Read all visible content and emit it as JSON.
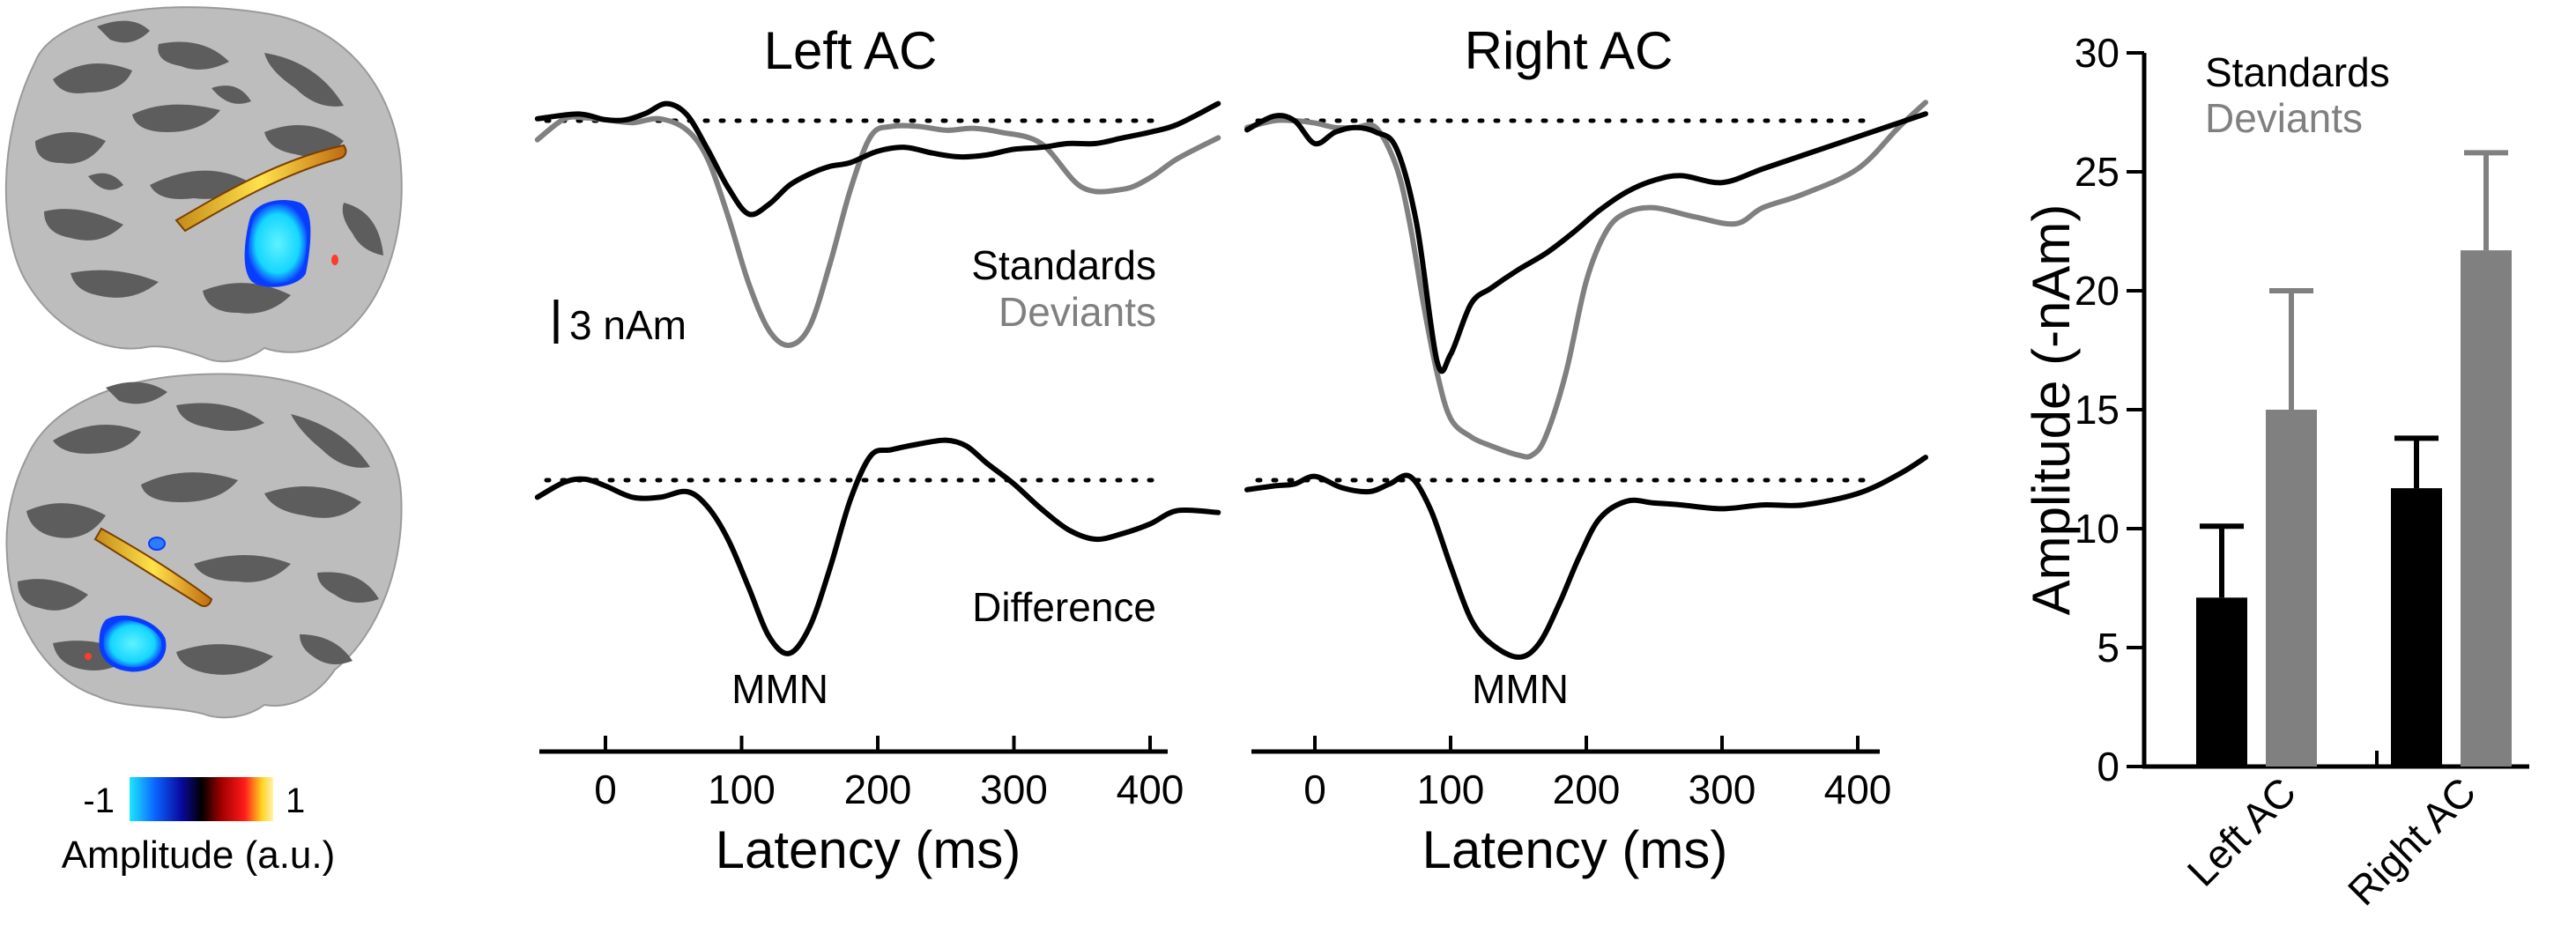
{
  "colors": {
    "standards": "#000000",
    "deviants": "#808080",
    "brain_dark": "#5d5d5d",
    "brain_light": "#bdbdbd",
    "colorbar": [
      "#1fe7ff",
      "#0a62ff",
      "#0a0aa0",
      "#000000",
      "#a00000",
      "#ff1a1a",
      "#ffd21f",
      "#fff3b0"
    ]
  },
  "brain_panel": {
    "views": [
      "left-hemisphere",
      "right-hemisphere"
    ],
    "colorbar": {
      "min_label": "-1",
      "max_label": "1",
      "caption": "Amplitude (a.u.)"
    }
  },
  "chart_data": [
    {
      "type": "line",
      "title": "Left AC",
      "xlabel": "Latency (ms)",
      "xlim": [
        -50,
        450
      ],
      "xticks": [
        0,
        100,
        200,
        300,
        400
      ],
      "legend": [
        "Standards",
        "Deviants"
      ],
      "scale_bar_label": "3 nAm",
      "difference_label": "Difference",
      "peak_annotation": "MMN",
      "series": [
        {
          "name": "Standards",
          "x": [
            -50,
            -20,
            0,
            15,
            30,
            45,
            60,
            75,
            90,
            105,
            120,
            135,
            150,
            165,
            180,
            200,
            220,
            240,
            260,
            280,
            300,
            320,
            340,
            360,
            380,
            400,
            420,
            450
          ],
          "y": [
            0.1,
            0.35,
            0.05,
            0.05,
            0.4,
            0.9,
            0.3,
            -1.5,
            -3.5,
            -4.9,
            -4.4,
            -3.4,
            -2.8,
            -2.4,
            -2.2,
            -1.6,
            -1.4,
            -1.7,
            -1.9,
            -1.8,
            -1.5,
            -1.4,
            -1.2,
            -1.2,
            -0.9,
            -0.6,
            -0.2,
            0.9
          ]
        },
        {
          "name": "Deviants",
          "x": [
            -50,
            -30,
            -15,
            0,
            20,
            40,
            60,
            75,
            90,
            105,
            120,
            135,
            150,
            165,
            180,
            195,
            210,
            230,
            250,
            270,
            290,
            320,
            350,
            380,
            400,
            420,
            450
          ],
          "y": [
            -1.0,
            0.1,
            0.15,
            0.05,
            -0.1,
            0.1,
            -0.5,
            -2.0,
            -5.0,
            -8.5,
            -11.0,
            -11.8,
            -10.8,
            -7.5,
            -3.6,
            -0.8,
            -0.3,
            -0.3,
            -0.5,
            -0.4,
            -0.6,
            -1.2,
            -3.5,
            -3.6,
            -3.0,
            -2.0,
            -0.9
          ]
        },
        {
          "name": "Difference",
          "x": [
            -50,
            -30,
            -15,
            0,
            20,
            40,
            60,
            75,
            90,
            105,
            120,
            135,
            150,
            165,
            180,
            195,
            210,
            230,
            250,
            265,
            280,
            300,
            320,
            340,
            360,
            380,
            400,
            420,
            450
          ],
          "y": [
            -0.9,
            -0.1,
            0.05,
            -0.3,
            -0.9,
            -0.9,
            -0.6,
            -1.4,
            -3.1,
            -5.6,
            -8.2,
            -9.1,
            -7.7,
            -4.6,
            -1.0,
            1.3,
            1.6,
            1.9,
            2.1,
            1.8,
            0.9,
            -0.2,
            -1.5,
            -2.6,
            -3.1,
            -2.8,
            -2.3,
            -1.6,
            -1.7
          ]
        }
      ]
    },
    {
      "type": "line",
      "title": "Right AC",
      "xlabel": "Latency (ms)",
      "xlim": [
        -50,
        450
      ],
      "xticks": [
        0,
        100,
        200,
        300,
        400
      ],
      "peak_annotation": "MMN",
      "series": [
        {
          "name": "Standards",
          "x": [
            -50,
            -30,
            -15,
            0,
            15,
            30,
            45,
            60,
            75,
            90,
            100,
            115,
            130,
            150,
            170,
            190,
            210,
            230,
            250,
            270,
            300,
            330,
            360,
            400,
            450
          ],
          "y": [
            -0.4,
            0.2,
            0.0,
            -1.0,
            -0.5,
            -0.3,
            -0.5,
            -1.2,
            -4.5,
            -10.5,
            -10.2,
            -8.0,
            -7.3,
            -6.5,
            -5.8,
            -4.9,
            -3.9,
            -3.1,
            -2.6,
            -2.4,
            -2.7,
            -2.1,
            -1.5,
            -0.7,
            0.3
          ]
        },
        {
          "name": "Deviants",
          "x": [
            -50,
            -30,
            -15,
            0,
            15,
            30,
            45,
            60,
            70,
            80,
            90,
            100,
            115,
            130,
            150,
            160,
            170,
            185,
            200,
            215,
            230,
            250,
            280,
            310,
            330,
            360,
            400,
            430,
            450
          ],
          "y": [
            -0.3,
            0.0,
            0.0,
            -0.1,
            -0.3,
            -0.3,
            -0.3,
            -2.0,
            -4.5,
            -8.0,
            -11.0,
            -13.0,
            -13.8,
            -14.2,
            -14.6,
            -14.6,
            -13.8,
            -11.0,
            -7.0,
            -4.8,
            -4.0,
            -3.8,
            -4.2,
            -4.5,
            -3.8,
            -3.2,
            -2.1,
            -0.3,
            0.8
          ]
        },
        {
          "name": "Difference",
          "x": [
            -50,
            -30,
            -15,
            0,
            20,
            40,
            55,
            70,
            85,
            100,
            115,
            130,
            150,
            165,
            180,
            195,
            210,
            230,
            250,
            270,
            300,
            330,
            360,
            400,
            430,
            450
          ],
          "y": [
            -0.5,
            -0.3,
            -0.2,
            0.2,
            -0.4,
            -0.6,
            -0.2,
            0.2,
            -1.5,
            -4.5,
            -7.3,
            -8.6,
            -9.3,
            -8.6,
            -6.5,
            -4.0,
            -2.0,
            -1.1,
            -1.2,
            -1.3,
            -1.5,
            -1.3,
            -1.3,
            -0.7,
            0.3,
            1.2
          ]
        }
      ]
    },
    {
      "type": "bar",
      "title": "",
      "ylabel": "Amplitude (-nAm)",
      "ylim": [
        0,
        30
      ],
      "yticks": [
        0,
        5,
        10,
        15,
        20,
        25,
        30
      ],
      "categories": [
        "Left AC",
        "Right AC"
      ],
      "legend": [
        "Standards",
        "Deviants"
      ],
      "series": [
        {
          "name": "Standards",
          "values": [
            7.1,
            11.7
          ],
          "errors": [
            3.0,
            2.1
          ]
        },
        {
          "name": "Deviants",
          "values": [
            15.0,
            21.7
          ],
          "errors": [
            5.0,
            4.1
          ]
        }
      ]
    }
  ]
}
